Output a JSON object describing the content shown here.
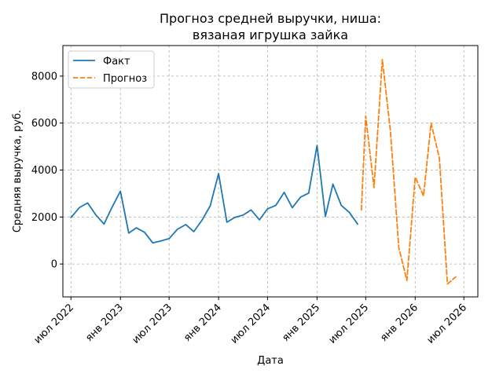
{
  "chart_data": {
    "type": "line",
    "title": [
      "Прогноз средней выручки, ниша:",
      "вязаная игрушка зайка"
    ],
    "xlabel": "Дата",
    "ylabel": "Средняя выручка, руб.",
    "xlim": [
      "2022-06-01",
      "2026-08-22"
    ],
    "ylim": [
      -1400,
      9300
    ],
    "yticks": [
      0,
      2000,
      4000,
      6000,
      8000
    ],
    "yticklabels": [
      "0",
      "2000",
      "4000",
      "6000",
      "8000"
    ],
    "xticks": [
      "2022-07-01",
      "2023-01-01",
      "2023-07-01",
      "2024-01-01",
      "2024-07-01",
      "2025-01-01",
      "2025-07-01",
      "2026-01-01",
      "2026-07-01"
    ],
    "xticklabels": [
      "июл 2022",
      "янв 2023",
      "июл 2023",
      "янв 2024",
      "июл 2024",
      "янв 2025",
      "июл 2025",
      "янв 2026",
      "июл 2026"
    ],
    "grid": true,
    "legend_position": "top-left",
    "series": [
      {
        "name": "Факт",
        "color": "#1f77b4",
        "style": "solid",
        "x": [
          "2022-07-01",
          "2022-08-01",
          "2022-09-01",
          "2022-10-01",
          "2022-11-01",
          "2022-12-01",
          "2023-01-01",
          "2023-02-01",
          "2023-03-01",
          "2023-04-01",
          "2023-05-01",
          "2023-06-01",
          "2023-07-01",
          "2023-08-01",
          "2023-09-01",
          "2023-10-01",
          "2023-11-01",
          "2023-12-01",
          "2024-01-01",
          "2024-02-01",
          "2024-03-01",
          "2024-04-01",
          "2024-05-01",
          "2024-06-01",
          "2024-07-01",
          "2024-08-01",
          "2024-09-01",
          "2024-10-01",
          "2024-11-01",
          "2024-12-01",
          "2025-01-01",
          "2025-02-01",
          "2025-03-01",
          "2025-04-01",
          "2025-05-01",
          "2025-06-01"
        ],
        "y": [
          1980,
          2400,
          2600,
          2100,
          1700,
          2420,
          3100,
          1320,
          1540,
          1350,
          900,
          980,
          1080,
          1480,
          1680,
          1380,
          1880,
          2480,
          3850,
          1780,
          1980,
          2080,
          2300,
          1880,
          2350,
          2500,
          3050,
          2400,
          2850,
          3020,
          5050,
          2020,
          3400,
          2500,
          2200,
          1700
        ]
      },
      {
        "name": "Прогноз",
        "color": "#ff7f0e",
        "style": "dashed",
        "x": [
          "2025-06-15",
          "2025-07-01",
          "2025-08-01",
          "2025-09-01",
          "2025-10-01",
          "2025-11-01",
          "2025-12-01",
          "2026-01-01",
          "2026-02-01",
          "2026-03-01",
          "2026-04-01",
          "2026-05-01",
          "2026-06-01"
        ],
        "y": [
          2300,
          6300,
          3250,
          8700,
          5650,
          700,
          -700,
          3700,
          2900,
          6000,
          4500,
          -850,
          -550
        ]
      }
    ]
  }
}
